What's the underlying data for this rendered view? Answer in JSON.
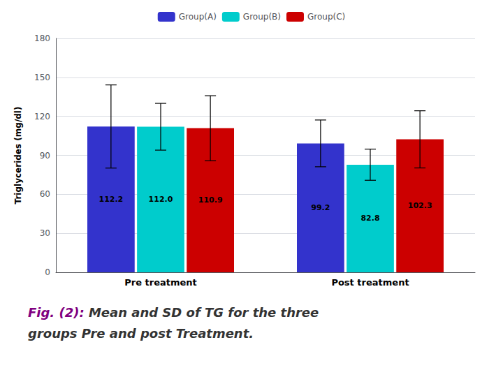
{
  "chart_data": {
    "type": "bar",
    "categories": [
      "Pre treatment",
      "Post treatment"
    ],
    "series": [
      {
        "name": "Group(A)",
        "color": "#3333CC",
        "values": [
          112.2,
          99.2
        ],
        "value_labels": [
          "112.2",
          "99.2"
        ],
        "errors": [
          32,
          18
        ]
      },
      {
        "name": "Group(B)",
        "color": "#00CCCC",
        "values": [
          112.0,
          82.8
        ],
        "value_labels": [
          "112.0",
          "82.8"
        ],
        "errors": [
          18,
          12
        ]
      },
      {
        "name": "Group(C)",
        "color": "#CC0000",
        "values": [
          110.9,
          102.3
        ],
        "value_labels": [
          "110.9",
          "102.3"
        ],
        "errors": [
          25,
          22
        ]
      }
    ],
    "ylabel": "Triglycerides (mg/dl)",
    "ylim": [
      0,
      180
    ],
    "yticks": [
      0,
      30,
      60,
      90,
      120,
      150,
      180
    ],
    "grid": true,
    "legend": "top",
    "data_labels": true,
    "annotations": [
      "Fig. (2):",
      "Mean and SD of TG for the three",
      "groups Pre and post Treatment."
    ]
  }
}
